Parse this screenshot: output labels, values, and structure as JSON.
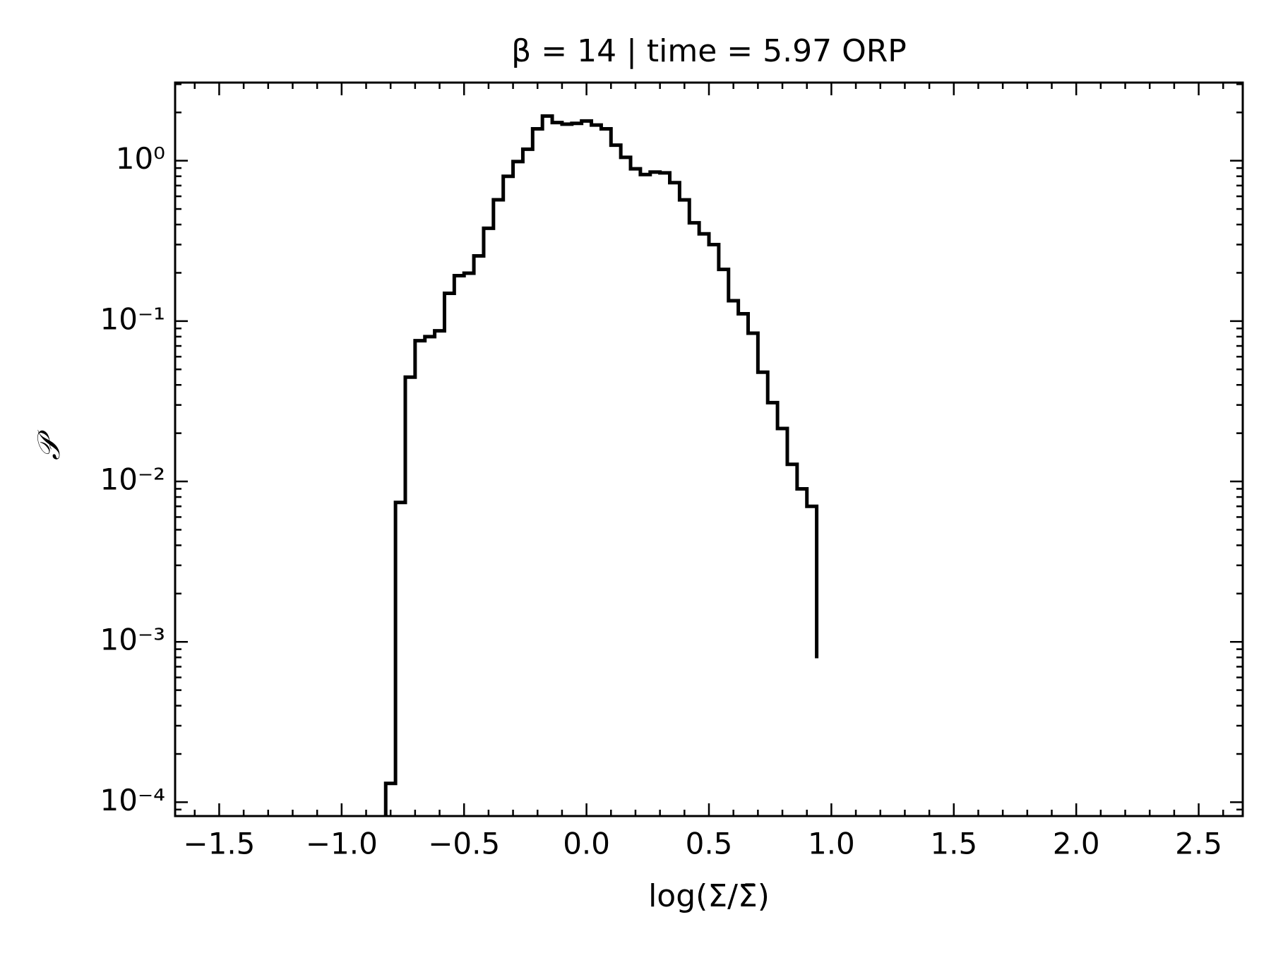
{
  "chart_data": {
    "type": "histogram",
    "title": "β = 14 | time = 5.97 ORP",
    "x_label": "log(Σ/Σ̄)",
    "y_label": "𝒫",
    "color": "#000000",
    "histtype": "step",
    "log_y": true,
    "bins": [
      -0.82,
      -0.78,
      -0.74,
      -0.7,
      -0.66,
      -0.62,
      -0.58,
      -0.54,
      -0.5,
      -0.46,
      -0.42,
      -0.38,
      -0.34,
      -0.3,
      -0.26,
      -0.22,
      -0.18,
      -0.14,
      -0.1,
      -0.06,
      -0.02,
      0.02,
      0.06,
      0.1,
      0.14,
      0.18,
      0.22,
      0.26,
      0.3,
      0.34,
      0.38,
      0.42,
      0.46,
      0.5,
      0.54,
      0.58,
      0.62,
      0.66,
      0.7,
      0.74,
      0.78,
      0.82,
      0.86,
      0.9,
      0.94
    ],
    "values": [
      0.000131,
      0.0074,
      0.0447,
      0.0755,
      0.08,
      0.087,
      0.149,
      0.192,
      0.199,
      0.255,
      0.379,
      0.571,
      0.8,
      0.988,
      1.18,
      1.58,
      1.9,
      1.73,
      1.69,
      1.71,
      1.77,
      1.67,
      1.58,
      1.25,
      1.05,
      0.89,
      0.82,
      0.85,
      0.84,
      0.73,
      0.57,
      0.41,
      0.35,
      0.3,
      0.21,
      0.134,
      0.111,
      0.084,
      0.048,
      0.031,
      0.0214,
      0.0128,
      0.009,
      0.007,
      0.00079
    ],
    "xlim": [
      -1.68,
      2.68
    ],
    "ylim": [
      8.2e-05,
      3.07
    ],
    "xticks": [
      {
        "value": -1.5,
        "label": "−1.5"
      },
      {
        "value": -1.0,
        "label": "−1.0"
      },
      {
        "value": -0.5,
        "label": "−0.5"
      },
      {
        "value": 0.0,
        "label": "0.0"
      },
      {
        "value": 0.5,
        "label": "0.5"
      },
      {
        "value": 1.0,
        "label": "1.0"
      },
      {
        "value": 1.5,
        "label": "1.5"
      },
      {
        "value": 2.0,
        "label": "2.0"
      },
      {
        "value": 2.5,
        "label": "2.5"
      }
    ],
    "xminorticks": [
      -1.6,
      -1.4,
      -1.3,
      -1.2,
      -1.1,
      -0.9,
      -0.8,
      -0.7,
      -0.6,
      -0.4,
      -0.3,
      -0.2,
      -0.1,
      0.1,
      0.2,
      0.3,
      0.4,
      0.6,
      0.7,
      0.8,
      0.9,
      1.1,
      1.2,
      1.3,
      1.4,
      1.6,
      1.7,
      1.8,
      1.9,
      2.1,
      2.2,
      2.3,
      2.4,
      2.6
    ],
    "yticks": [
      {
        "value": 0.0001,
        "label": "10⁻⁴"
      },
      {
        "value": 0.001,
        "label": "10⁻³"
      },
      {
        "value": 0.01,
        "label": "10⁻²"
      },
      {
        "value": 0.1,
        "label": "10⁻¹"
      },
      {
        "value": 1,
        "label": "10⁰"
      }
    ],
    "yminorticks": [
      9e-05,
      0.0002,
      0.0003,
      0.0004,
      0.0005,
      0.0006,
      0.0007,
      0.0008,
      0.0009,
      0.002,
      0.003,
      0.004,
      0.005,
      0.006,
      0.007,
      0.008,
      0.009,
      0.02,
      0.03,
      0.04,
      0.05,
      0.06,
      0.07,
      0.08,
      0.09,
      0.2,
      0.3,
      0.4,
      0.5,
      0.6,
      0.7,
      0.8,
      0.9,
      2,
      3
    ]
  }
}
